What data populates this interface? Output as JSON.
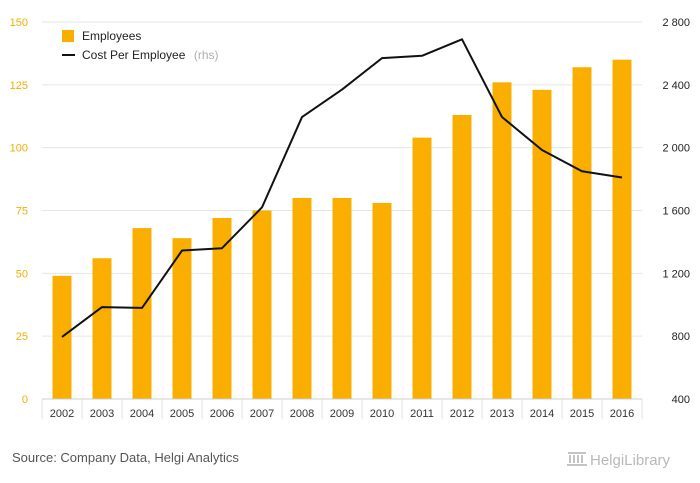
{
  "chart_data": {
    "type": "bar",
    "categories": [
      "2002",
      "2003",
      "2004",
      "2005",
      "2006",
      "2007",
      "2008",
      "2009",
      "2010",
      "2011",
      "2012",
      "2013",
      "2014",
      "2015",
      "2016"
    ],
    "series": [
      {
        "name": "Employees",
        "type": "bar",
        "axis": "left",
        "color": "#f9ae00",
        "values": [
          49,
          56,
          68,
          64,
          72,
          75,
          80,
          80,
          78,
          104,
          113,
          126,
          123,
          132,
          135
        ]
      },
      {
        "name": "Cost Per Employee",
        "type": "line",
        "axis": "right",
        "color": "#111111",
        "values": [
          795,
          985,
          980,
          1345,
          1360,
          1620,
          2195,
          2370,
          2570,
          2585,
          2690,
          2195,
          1985,
          1850,
          1810
        ]
      }
    ],
    "legend": {
      "position": "top-left",
      "rhs_suffix": "(rhs)"
    },
    "y_left": {
      "ylim": [
        0,
        150
      ],
      "ticks": [
        "0",
        "25",
        "50",
        "75",
        "100",
        "125",
        "150"
      ]
    },
    "y_right": {
      "ylim": [
        400,
        2800
      ],
      "ticks": [
        "400",
        "800",
        "1 200",
        "1 600",
        "2 000",
        "2 400",
        "2 800"
      ]
    },
    "grid": true
  },
  "footer": {
    "source": "Source: Company Data, Helgi Analytics",
    "brand": "HelgiLibrary"
  }
}
